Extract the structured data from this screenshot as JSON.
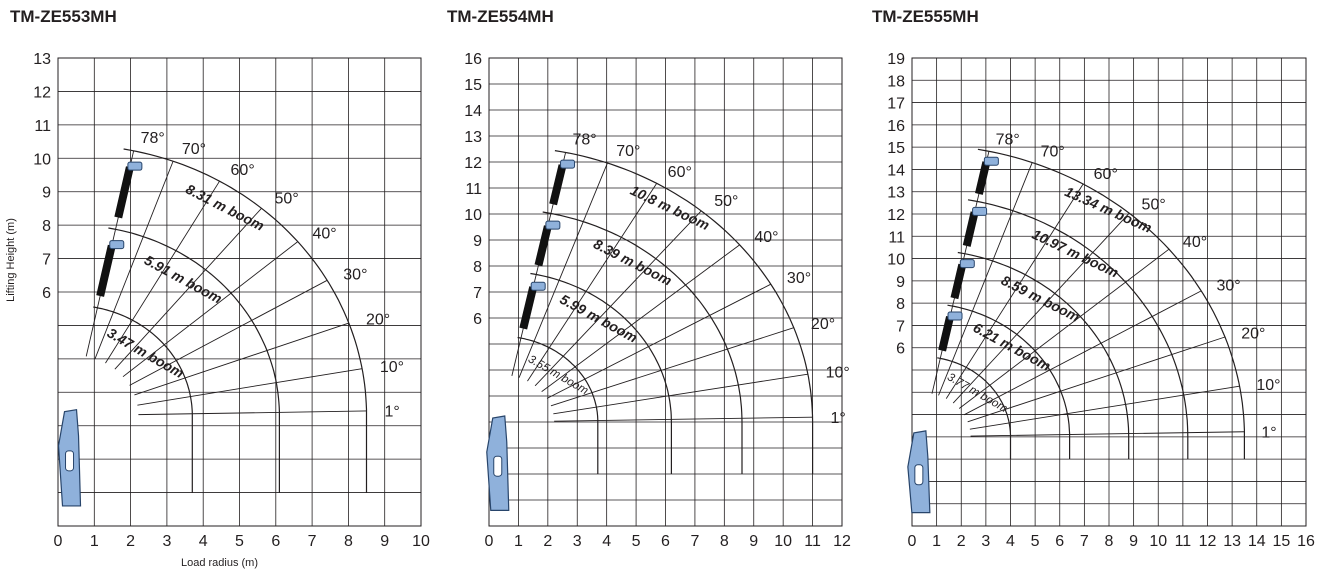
{
  "axis_labels": {
    "x": "Load radius (m)",
    "y": "Lifting Height (m)"
  },
  "colors": {
    "crane_body": "#8fb1db",
    "crane_outline": "#28456b",
    "boom_section": "#111111",
    "ink": "#231f20"
  },
  "chart_data": [
    {
      "type": "diagram",
      "title": "TM-ZE553MH",
      "xlim": [
        0,
        10
      ],
      "ylim": [
        -1,
        13
      ],
      "x_ticks": [
        "0",
        "1",
        "2",
        "3",
        "4",
        "5",
        "6",
        "7",
        "8",
        "9",
        "10"
      ],
      "y_ticks": [
        "13",
        "12",
        "11",
        "10",
        "9",
        "8",
        "7",
        "6"
      ],
      "xlabel": "Load radius (m)",
      "ylabel": "Lifting Height (m)",
      "pivot": [
        0.4,
        2.3
      ],
      "angles": [
        78,
        70,
        60,
        50,
        40,
        30,
        20,
        10,
        1
      ],
      "angle_labels": [
        "78°",
        "70°",
        "60°",
        "50°",
        "40°",
        "30°",
        "20°",
        "10°",
        "1°"
      ],
      "booms": [
        {
          "label": "3.47 m boom",
          "radius": 3.3,
          "arc_end_y": 0.0,
          "small": false
        },
        {
          "label": "5.91 m boom",
          "radius": 5.7,
          "arc_end_y": 0.0,
          "small": false
        },
        {
          "label": "8.31 m boom",
          "radius": 8.1,
          "arc_end_y": 0.0,
          "small": false
        }
      ]
    },
    {
      "type": "diagram",
      "title": "TM-ZE554MH",
      "xlim": [
        0,
        12
      ],
      "ylim": [
        -2,
        16
      ],
      "x_ticks": [
        "0",
        "1",
        "2",
        "3",
        "4",
        "5",
        "6",
        "7",
        "8",
        "9",
        "10",
        "11",
        "12"
      ],
      "y_ticks": [
        "16",
        "15",
        "14",
        "13",
        "12",
        "11",
        "10",
        "9",
        "8",
        "7",
        "6"
      ],
      "xlabel": "",
      "ylabel": "",
      "pivot": [
        0.4,
        2.0
      ],
      "angles": [
        78,
        70,
        60,
        50,
        40,
        30,
        20,
        10,
        1
      ],
      "angle_labels": [
        "78°",
        "70°",
        "60°",
        "50°",
        "40°",
        "30°",
        "20°",
        "10°",
        "1°"
      ],
      "booms": [
        {
          "label": "3.55 m boom",
          "radius": 3.3,
          "arc_end_y": 0.0,
          "small": true
        },
        {
          "label": "5.99 m boom",
          "radius": 5.8,
          "arc_end_y": 0.0,
          "small": false
        },
        {
          "label": "8.39 m boom",
          "radius": 8.2,
          "arc_end_y": 0.0,
          "small": false
        },
        {
          "label": "10.8 m boom",
          "radius": 10.6,
          "arc_end_y": 0.0,
          "small": false
        }
      ]
    },
    {
      "type": "diagram",
      "title": "TM-ZE555MH",
      "xlim": [
        0,
        16
      ],
      "ylim": [
        -2,
        19
      ],
      "x_ticks": [
        "0",
        "1",
        "2",
        "3",
        "4",
        "5",
        "6",
        "7",
        "8",
        "9",
        "10",
        "11",
        "12",
        "13",
        "14",
        "15",
        "16"
      ],
      "y_ticks": [
        "19",
        "18",
        "17",
        "16",
        "15",
        "14",
        "13",
        "12",
        "11",
        "10",
        "9",
        "8",
        "7",
        "6"
      ],
      "xlabel": "",
      "ylabel": "",
      "pivot": [
        0.4,
        2.0
      ],
      "angles": [
        78,
        70,
        60,
        50,
        40,
        30,
        20,
        10,
        1
      ],
      "angle_labels": [
        "78°",
        "70°",
        "60°",
        "50°",
        "40°",
        "30°",
        "20°",
        "10°",
        "1°"
      ],
      "booms": [
        {
          "label": "3.77 m boom",
          "radius": 3.6,
          "arc_end_y": 1.0,
          "small": true
        },
        {
          "label": "6.21 m boom",
          "radius": 6.0,
          "arc_end_y": 1.0,
          "small": false
        },
        {
          "label": "8.59 m boom",
          "radius": 8.4,
          "arc_end_y": 1.0,
          "small": false
        },
        {
          "label": "10.97 m boom",
          "radius": 10.8,
          "arc_end_y": 1.0,
          "small": false
        },
        {
          "label": "13.34 m boom",
          "radius": 13.1,
          "arc_end_y": 1.0,
          "small": false
        }
      ]
    }
  ]
}
